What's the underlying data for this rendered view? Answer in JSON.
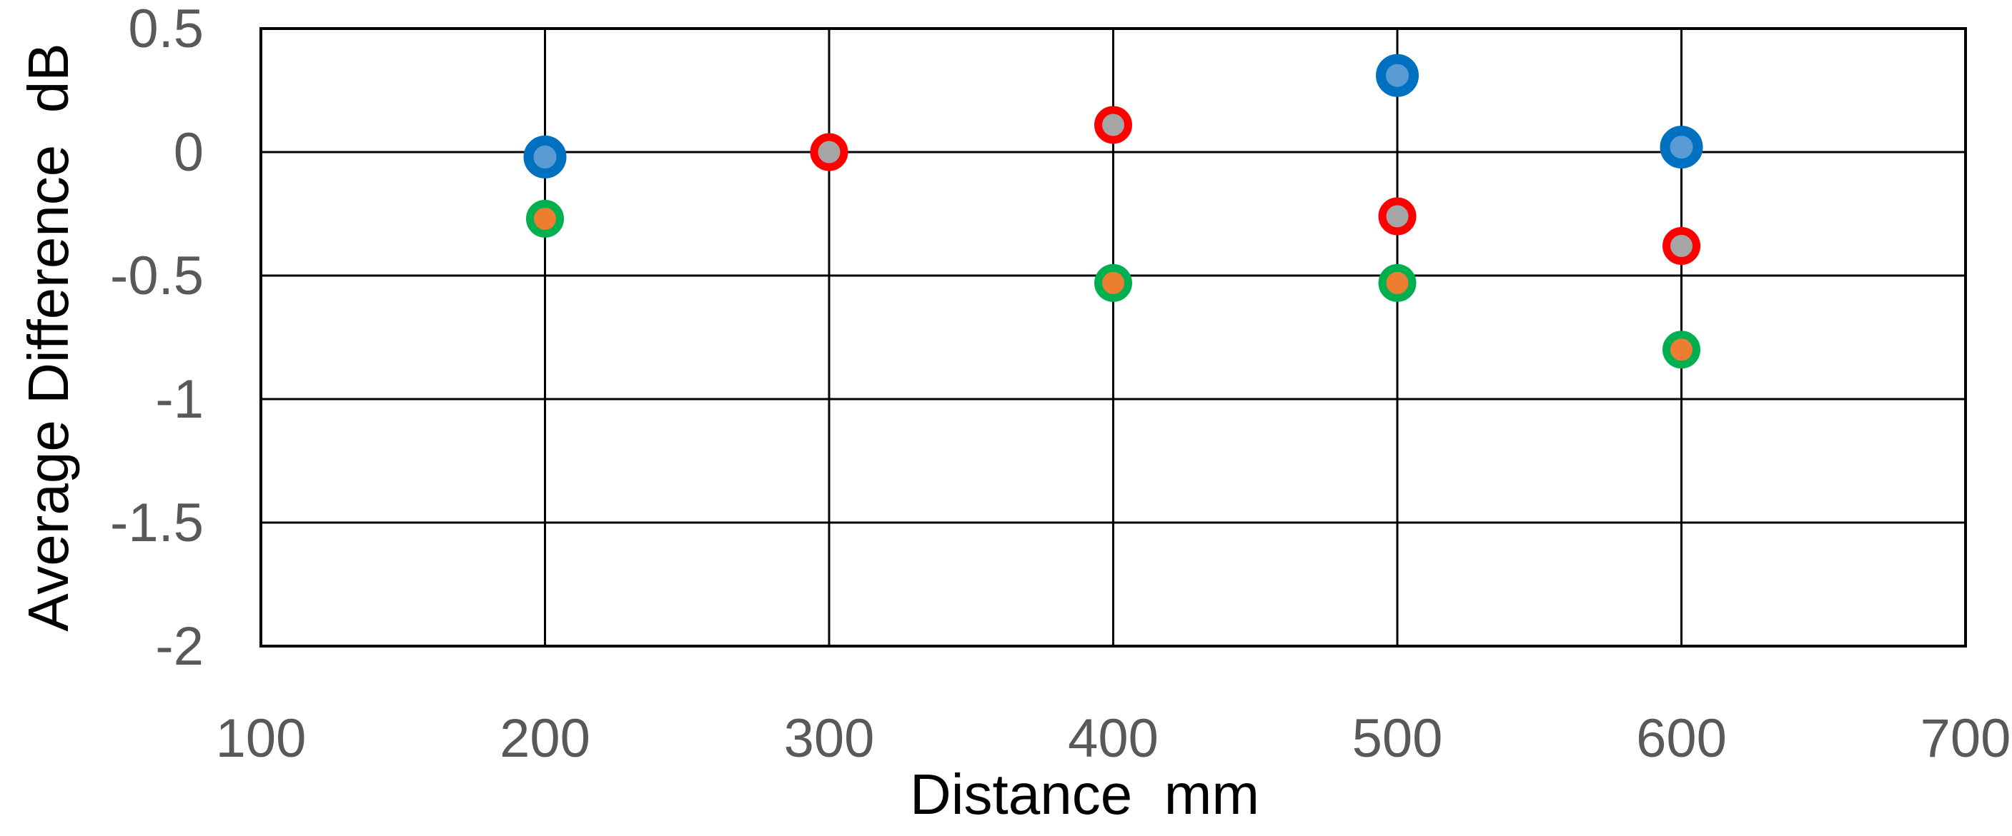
{
  "chart_data": {
    "type": "scatter",
    "title": "",
    "xlabel": "Distance  mm",
    "ylabel": "Average Difference  dB",
    "xlim": [
      100,
      700
    ],
    "ylim": [
      -2,
      0.5
    ],
    "x_ticks": [
      100,
      200,
      300,
      400,
      500,
      600,
      700
    ],
    "y_ticks": [
      0.5,
      0,
      -0.5,
      -1,
      -1.5,
      -2
    ],
    "x_tick_labels": [
      "100",
      "200",
      "300",
      "400",
      "500",
      "600",
      "700"
    ],
    "y_tick_labels": [
      "0.5",
      "0",
      "-0.5",
      "-1",
      "-1.5",
      "-2"
    ],
    "grid": true,
    "legend": "none",
    "series": [
      {
        "marker_fill": "#5b9bd5",
        "marker_edge": "#0070c0",
        "points": [
          {
            "x": 200,
            "y": -0.02
          },
          {
            "x": 500,
            "y": 0.31
          },
          {
            "x": 600,
            "y": 0.02
          }
        ]
      },
      {
        "marker_fill": "#a5a5a5",
        "marker_edge": "#ff0000",
        "points": [
          {
            "x": 300,
            "y": 0.0
          },
          {
            "x": 400,
            "y": 0.11
          },
          {
            "x": 500,
            "y": -0.26
          },
          {
            "x": 600,
            "y": -0.38
          }
        ]
      },
      {
        "marker_fill": "#ed7d31",
        "marker_edge": "#00b050",
        "points": [
          {
            "x": 200,
            "y": -0.27
          },
          {
            "x": 400,
            "y": -0.53
          },
          {
            "x": 500,
            "y": -0.53
          },
          {
            "x": 600,
            "y": -0.8
          }
        ]
      }
    ]
  }
}
